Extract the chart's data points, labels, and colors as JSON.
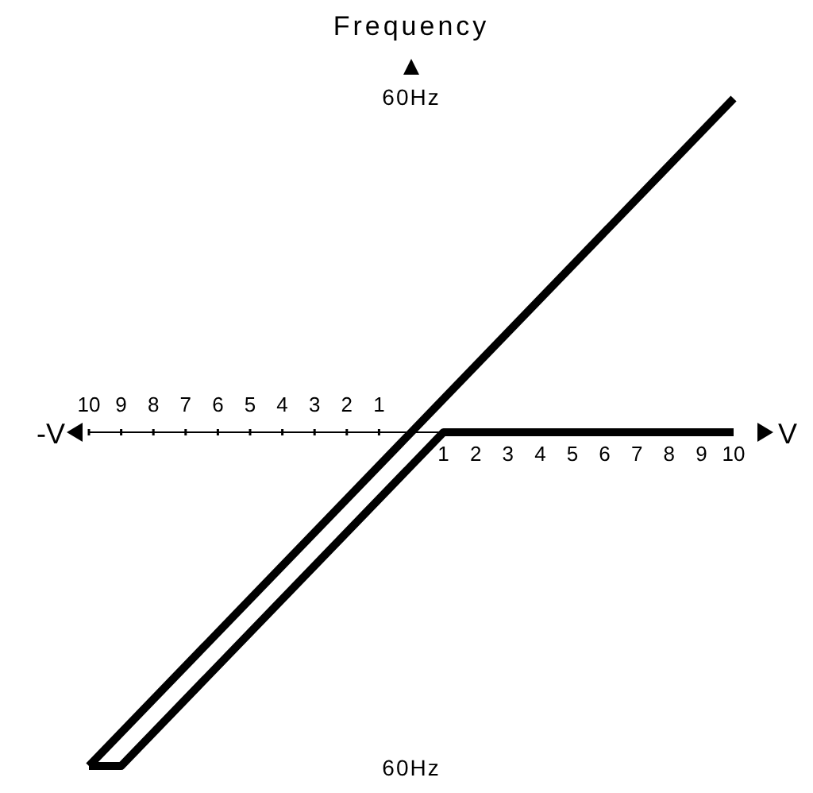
{
  "chart_data": {
    "type": "line",
    "ylabel": "Frequency",
    "xlabel": "V",
    "annotations": [
      "-V"
    ],
    "series": [
      {
        "color": "#000000",
        "x": [
          -10,
          10
        ],
        "values": [
          -60,
          60
        ]
      },
      {
        "color": "#000000",
        "x": [
          -10,
          -9,
          1,
          10
        ],
        "values": [
          -60,
          -60,
          0,
          0
        ]
      }
    ],
    "xlim": [
      -10,
      10
    ],
    "xticks": [
      {
        "value": -10,
        "label": "10"
      },
      {
        "value": -9,
        "label": "9"
      },
      {
        "value": -8,
        "label": "8"
      },
      {
        "value": -7,
        "label": "7"
      },
      {
        "value": -6,
        "label": "6"
      },
      {
        "value": -5,
        "label": "5"
      },
      {
        "value": -4,
        "label": "4"
      },
      {
        "value": -3,
        "label": "3"
      },
      {
        "value": -2,
        "label": "2"
      },
      {
        "value": -1,
        "label": "1"
      }
    ],
    "x2lim": [
      -10,
      10
    ],
    "x2ticks": [
      1,
      2,
      3,
      4,
      5,
      6,
      7,
      8,
      9,
      10
    ],
    "ylim": [
      -60,
      60
    ],
    "yticks": [
      {
        "value": -60,
        "label": "60Hz"
      },
      {
        "value": 60,
        "label": "60Hz"
      }
    ],
    "line_style": "solid"
  }
}
